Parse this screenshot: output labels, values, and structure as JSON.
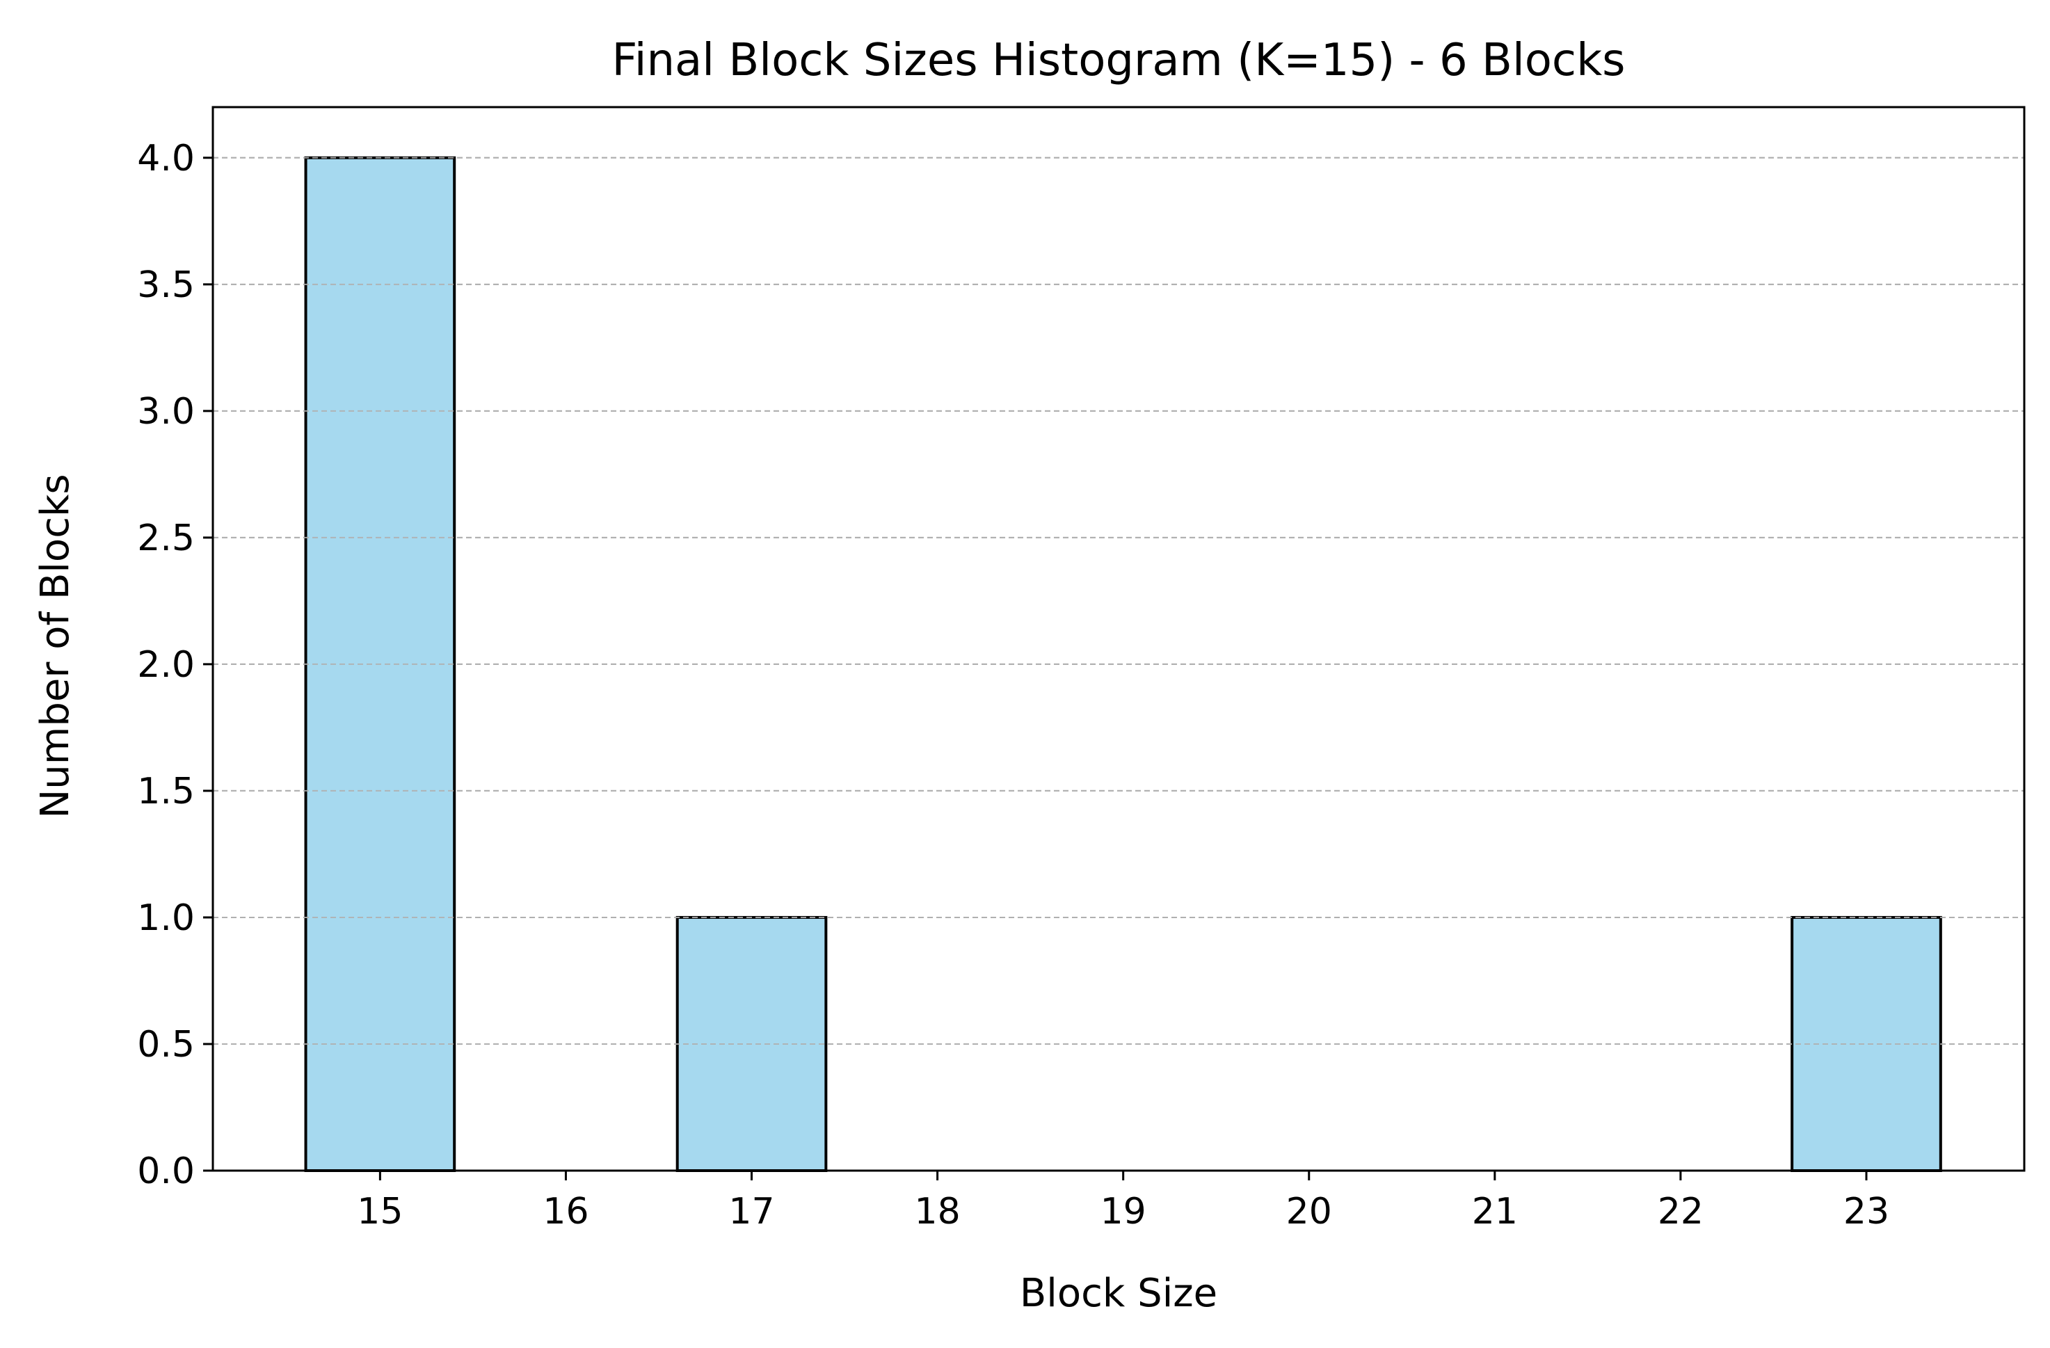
{
  "chart_data": {
    "type": "bar",
    "title": "Final Block Sizes Histogram (K=15) - 6 Blocks",
    "xlabel": "Block Size",
    "ylabel": "Number of Blocks",
    "categories": [
      "15",
      "16",
      "17",
      "18",
      "19",
      "20",
      "21",
      "22",
      "23"
    ],
    "x": [
      15,
      16,
      17,
      18,
      19,
      20,
      21,
      22,
      23
    ],
    "values": [
      4,
      0,
      1,
      0,
      0,
      0,
      0,
      0,
      1
    ],
    "xlim": [
      14.1,
      23.85
    ],
    "ylim": [
      0,
      4.2
    ],
    "yticks": [
      0.0,
      0.5,
      1.0,
      1.5,
      2.0,
      2.5,
      3.0,
      3.5,
      4.0
    ],
    "ytick_labels": [
      "0.0",
      "0.5",
      "1.0",
      "1.5",
      "2.0",
      "2.5",
      "3.0",
      "3.5",
      "4.0"
    ],
    "bar_width": 0.8,
    "grid": {
      "axis": "y",
      "style": "dashed"
    },
    "colors": {
      "bar_fill": "#a6d9ef",
      "bar_edge": "#000000",
      "grid": "#b0b0b0"
    }
  }
}
